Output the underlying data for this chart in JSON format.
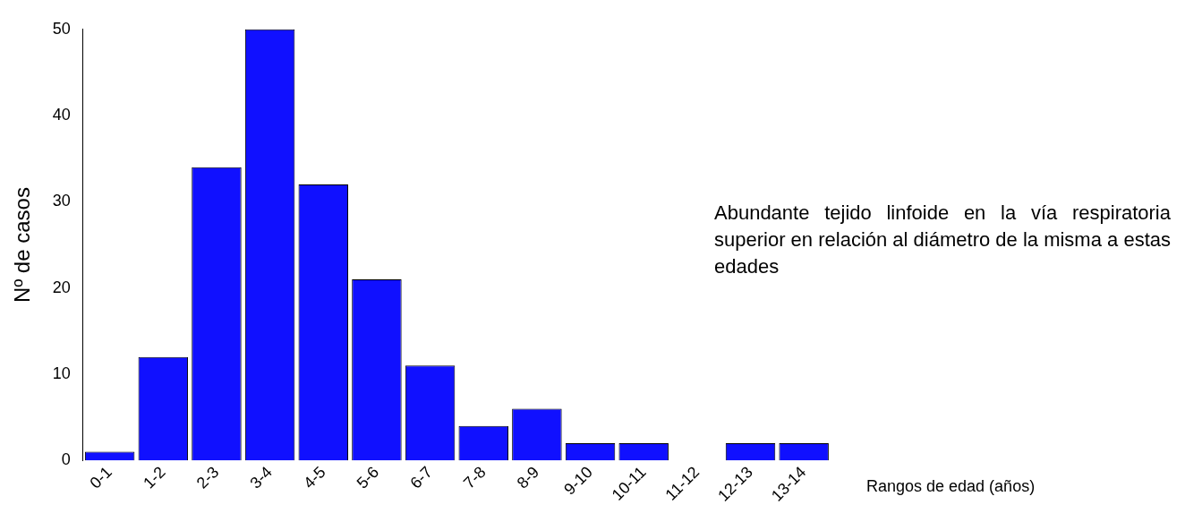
{
  "chart_data": {
    "type": "bar",
    "ylabel": "Nº de casos",
    "xlabel": "Rangos de edad (años)",
    "categories": [
      "0-1",
      "1-2",
      "2-3",
      "3-4",
      "4-5",
      "5-6",
      "6-7",
      "7-8",
      "8-9",
      "9-10",
      "10-11",
      "11-12",
      "12-13",
      "13-14"
    ],
    "values": [
      1,
      12,
      34,
      50,
      32,
      21,
      11,
      4,
      6,
      2,
      2,
      0,
      2,
      2
    ],
    "color": "#1010ff",
    "ylim": [
      0,
      50
    ],
    "yticks": [
      0,
      10,
      20,
      30,
      40,
      50
    ],
    "grid": false,
    "legend": false,
    "annotations": [
      "Abundante tejido linfoide en la vía respiratoria superior en relación al diámetro de la misma a estas edades"
    ]
  }
}
